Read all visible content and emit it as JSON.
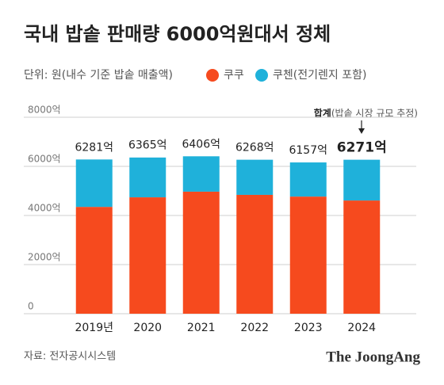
{
  "chart_data": {
    "type": "stacked-bar",
    "title": "국내 밥솥 판매량 6000억원대서 정체",
    "subtitle": "단위: 원(내수 기준 밥솥 매출액)",
    "categories": [
      "2019년",
      "2020",
      "2021",
      "2022",
      "2023",
      "2024"
    ],
    "series": [
      {
        "name": "쿠쿠",
        "color": "#f64a1e",
        "values": [
          4350,
          4740,
          4970,
          4840,
          4770,
          4610
        ]
      },
      {
        "name": "쿠첸(전기렌지 포함)",
        "color": "#1fb1da",
        "values": [
          1930,
          1620,
          1440,
          1430,
          1390,
          1660
        ]
      }
    ],
    "totals": {
      "values": [
        6281,
        6365,
        6406,
        6268,
        6157,
        6271
      ],
      "value_labels": [
        "6281억",
        "6365억",
        "6406억",
        "6268억",
        "6157억",
        "6271억"
      ]
    },
    "annotation": {
      "bold": "합계",
      "text": "(밥솥 시장 규모 추정)"
    },
    "ylim": [
      0,
      8000
    ],
    "yticks": [
      0,
      {
        "value": 2000,
        "label": "2000억"
      },
      {
        "value": 4000,
        "label": "4000억"
      },
      {
        "value": 6000,
        "label": "6000억"
      },
      {
        "value": 8000,
        "label": "8000억"
      }
    ],
    "grid": true,
    "source": "자료: 전자공시시스템",
    "brand": "The JoongAng"
  }
}
